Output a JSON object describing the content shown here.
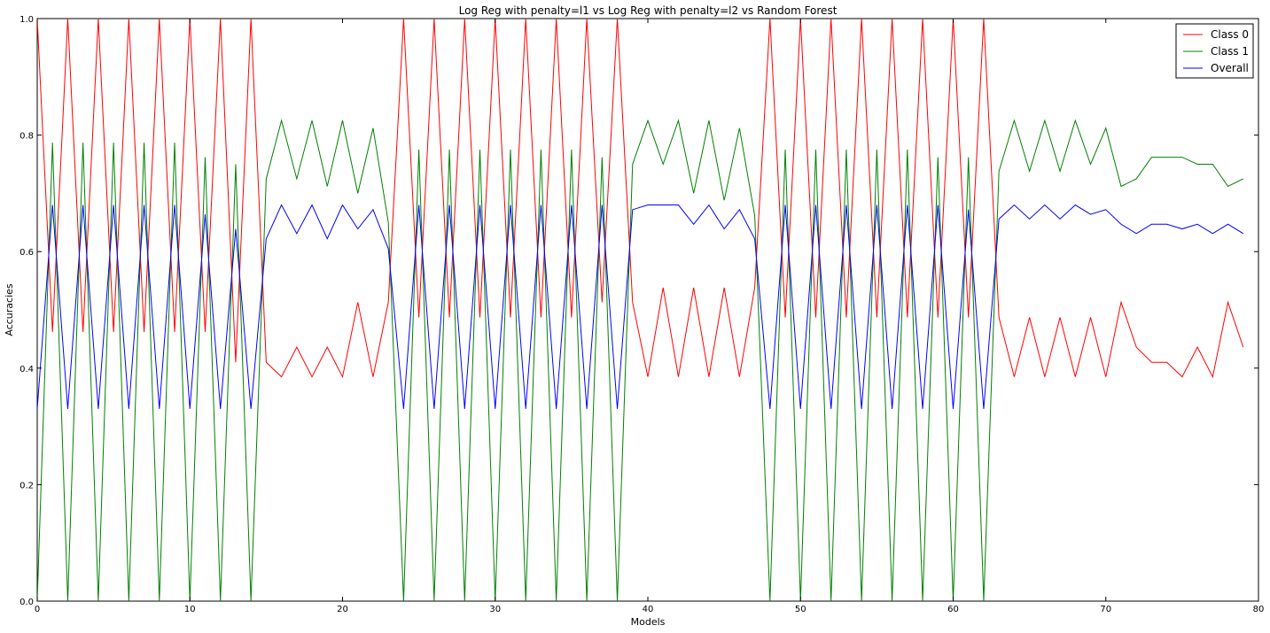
{
  "chart_data": {
    "type": "line",
    "title": "Log Reg with penalty=l1 vs Log Reg with penalty=l2 vs Random Forest",
    "xlabel": "Models",
    "ylabel": "Accuracies",
    "xlim": [
      0,
      80
    ],
    "ylim": [
      0.0,
      1.0
    ],
    "xticks": [
      0,
      10,
      20,
      30,
      40,
      50,
      60,
      70,
      80
    ],
    "yticks": [
      0.0,
      0.2,
      0.4,
      0.6,
      0.8,
      1.0
    ],
    "grid": false,
    "legend_position": "top-right",
    "series": [
      {
        "name": "Class 0",
        "color": "#ff0000",
        "values": [
          1.0,
          0.462,
          1.0,
          0.462,
          1.0,
          0.462,
          1.0,
          0.462,
          1.0,
          0.462,
          1.0,
          0.462,
          1.0,
          0.41,
          1.0,
          0.41,
          0.385,
          0.436,
          0.385,
          0.436,
          0.385,
          0.513,
          0.385,
          0.513,
          1.0,
          0.487,
          1.0,
          0.487,
          1.0,
          0.487,
          1.0,
          0.487,
          1.0,
          0.487,
          1.0,
          0.487,
          1.0,
          0.513,
          1.0,
          0.513,
          0.385,
          0.538,
          0.385,
          0.538,
          0.385,
          0.538,
          0.385,
          0.538,
          1.0,
          0.487,
          1.0,
          0.487,
          1.0,
          0.487,
          1.0,
          0.487,
          1.0,
          0.487,
          1.0,
          0.487,
          1.0,
          0.487,
          1.0,
          0.487,
          0.385,
          0.487,
          0.385,
          0.487,
          0.385,
          0.487,
          0.385,
          0.513,
          0.436,
          0.41,
          0.41,
          0.385,
          0.436,
          0.385,
          0.513,
          0.436
        ]
      },
      {
        "name": "Class 1",
        "color": "#008000",
        "values": [
          0.0,
          0.787,
          0.0,
          0.787,
          0.0,
          0.787,
          0.0,
          0.787,
          0.0,
          0.787,
          0.0,
          0.762,
          0.0,
          0.75,
          0.0,
          0.725,
          0.825,
          0.725,
          0.825,
          0.712,
          0.825,
          0.7,
          0.812,
          0.65,
          0.0,
          0.775,
          0.0,
          0.775,
          0.0,
          0.775,
          0.0,
          0.775,
          0.0,
          0.775,
          0.0,
          0.775,
          0.0,
          0.762,
          0.0,
          0.75,
          0.825,
          0.75,
          0.825,
          0.7,
          0.825,
          0.688,
          0.812,
          0.662,
          0.0,
          0.775,
          0.0,
          0.775,
          0.0,
          0.775,
          0.0,
          0.775,
          0.0,
          0.775,
          0.0,
          0.762,
          0.0,
          0.762,
          0.0,
          0.738,
          0.825,
          0.738,
          0.825,
          0.738,
          0.825,
          0.75,
          0.812,
          0.712,
          0.725,
          0.762,
          0.762,
          0.762,
          0.75,
          0.75,
          0.712,
          0.725
        ]
      },
      {
        "name": "Overall",
        "color": "#0000ff",
        "values": [
          0.33,
          0.68,
          0.33,
          0.68,
          0.33,
          0.68,
          0.33,
          0.68,
          0.33,
          0.68,
          0.33,
          0.664,
          0.33,
          0.639,
          0.33,
          0.622,
          0.68,
          0.631,
          0.68,
          0.622,
          0.68,
          0.639,
          0.672,
          0.605,
          0.33,
          0.68,
          0.33,
          0.68,
          0.33,
          0.68,
          0.33,
          0.68,
          0.33,
          0.68,
          0.33,
          0.68,
          0.33,
          0.68,
          0.33,
          0.672,
          0.68,
          0.68,
          0.68,
          0.647,
          0.68,
          0.639,
          0.672,
          0.622,
          0.33,
          0.68,
          0.33,
          0.68,
          0.33,
          0.68,
          0.33,
          0.68,
          0.33,
          0.68,
          0.33,
          0.68,
          0.33,
          0.672,
          0.33,
          0.656,
          0.68,
          0.656,
          0.68,
          0.656,
          0.68,
          0.664,
          0.672,
          0.647,
          0.631,
          0.647,
          0.647,
          0.639,
          0.647,
          0.631,
          0.647,
          0.631
        ]
      }
    ]
  }
}
